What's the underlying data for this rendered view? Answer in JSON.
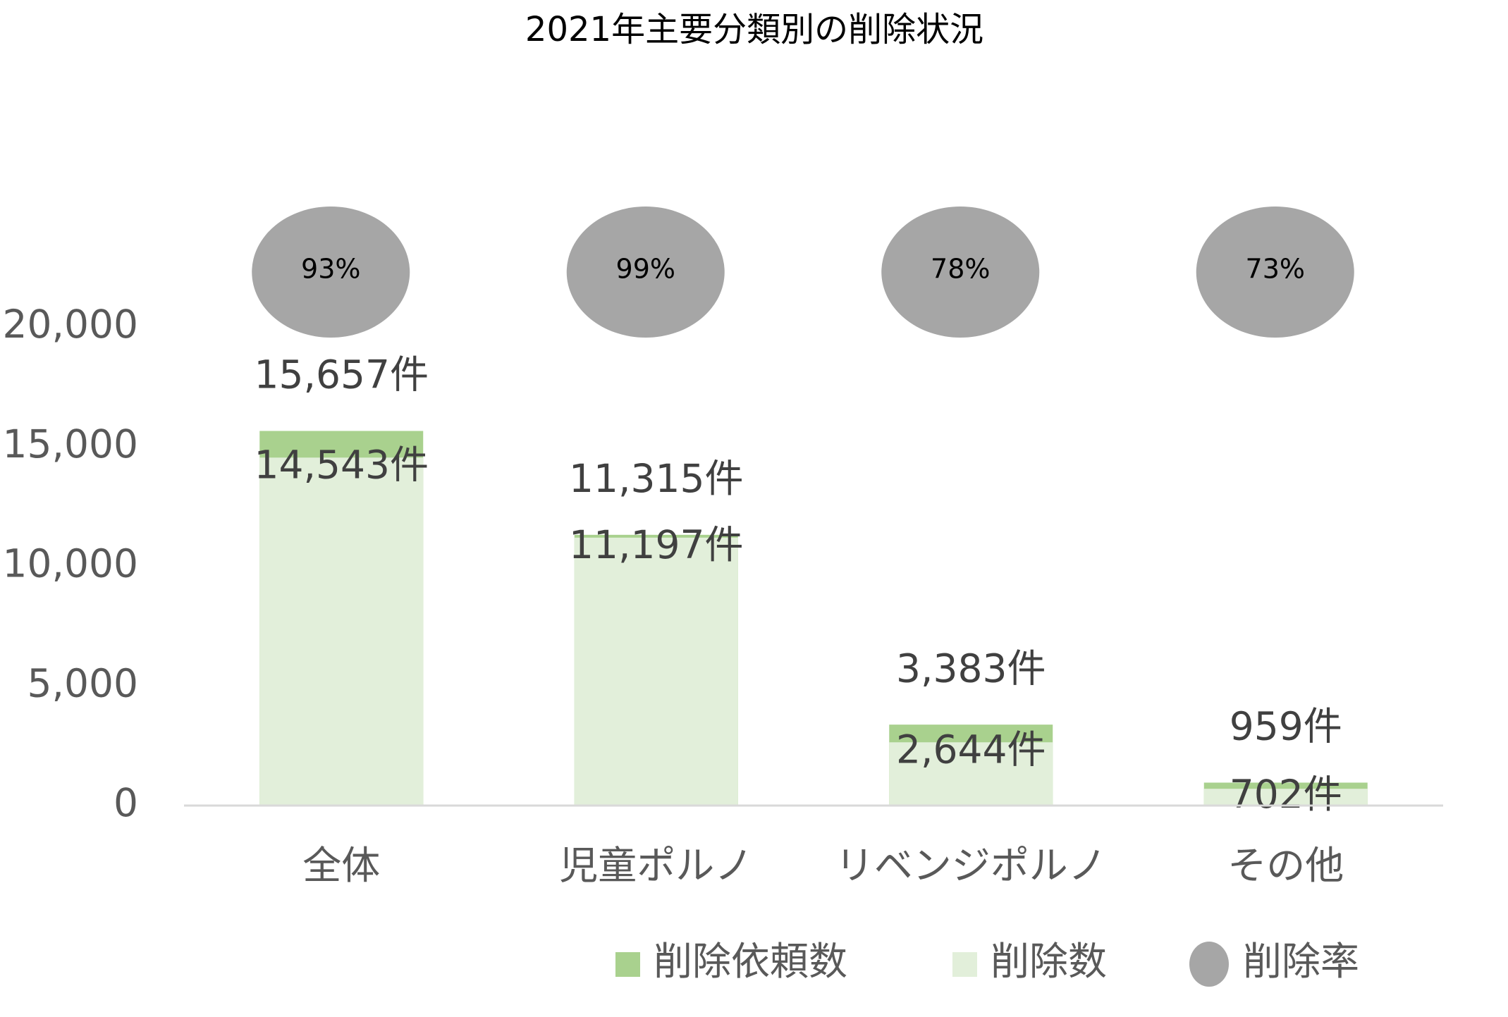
{
  "chart_data": {
    "type": "bar",
    "title": "2021年主要分類別の削除状況",
    "categories": [
      "全体",
      "児童ポルノ",
      "リベンジポルノ",
      "その他"
    ],
    "series": [
      {
        "name": "削除依頼数",
        "color": "#a9d18e",
        "values": [
          15657,
          11315,
          3383,
          959
        ],
        "value_labels": [
          "15,657件",
          "11,315件",
          "3,383件",
          "959件"
        ]
      },
      {
        "name": "削除数",
        "color": "#e2efda",
        "values": [
          14543,
          11197,
          2644,
          702
        ],
        "value_labels": [
          "14,543件",
          "11,197件",
          "2,644件",
          "702件"
        ]
      },
      {
        "name": "削除率",
        "color": "#a6a6a6",
        "values": [
          93,
          99,
          78,
          73
        ],
        "value_labels": [
          "93%",
          "99%",
          "78%",
          "73%"
        ]
      }
    ],
    "ylim": [
      0,
      20000
    ],
    "yticks": [
      0,
      {
        "value": 5000,
        "label": "5,000"
      },
      {
        "value": 10000,
        "label": "10,000"
      },
      {
        "value": 15000,
        "label": "15,000"
      },
      {
        "value": 20000,
        "label": "20,000"
      }
    ],
    "grid": false
  }
}
